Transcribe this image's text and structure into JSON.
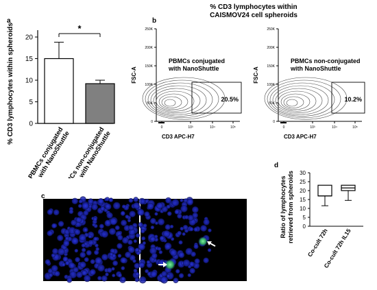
{
  "panels": {
    "a": {
      "letter": "a",
      "ylabel": "% CD3 lymphocytes within spheroids",
      "yticks": [
        "0",
        "5",
        "10",
        "15",
        "20"
      ],
      "significance": "*",
      "categories": [
        "PBMCs conjugated with NanoShuttle",
        "PBMCs non-conjugated with NanoShuttle"
      ],
      "colors": {
        "bar1": "#ffffff",
        "bar2": "#808080"
      }
    },
    "b": {
      "letter": "b",
      "title_line1": "% CD3 lymphocytes within",
      "title_line2": "CAISMOV24 cell spheroids",
      "yticks": [
        "250K",
        "200K",
        "150K",
        "100K",
        "50K",
        "0"
      ],
      "xticks": [
        "0",
        "10³",
        "10⁴",
        "10⁵"
      ],
      "plots": [
        {
          "label_line1": "PBMCs conjugated",
          "label_line2": "with NanoShuttle",
          "ylabel": "FSC-A",
          "xlabel": "CD3 APC-H7",
          "gate": "20.5%"
        },
        {
          "label_line1": "PBMCs non-conjugated",
          "label_line2": "with NanoShuttle",
          "ylabel": "FSC-A",
          "xlabel": "CD3 APC-H7",
          "gate": "10.2%"
        }
      ]
    },
    "c": {
      "letter": "c"
    },
    "d": {
      "letter": "d",
      "ylabel_line1": "Ratio of lymphocytes",
      "ylabel_line2": "retrieved from spheroids",
      "yticks": [
        "0",
        "5",
        "10",
        "15",
        "20",
        "25",
        "30"
      ],
      "categories": [
        "Co-cult 72h",
        "Co-cult 72h IL15"
      ]
    }
  },
  "chart_data": [
    {
      "type": "bar",
      "categories": [
        "PBMCs conjugated with NanoShuttle",
        "PBMCs non-conjugated with NanoShuttle"
      ],
      "values": [
        15,
        9.2
      ],
      "errors": [
        3.8,
        0.8
      ],
      "ylabel": "% CD3 lymphocytes within spheroids",
      "ylim": [
        0,
        20
      ]
    },
    {
      "type": "box",
      "categories": [
        "Co-cult 72h",
        "Co-cult 72h IL15"
      ],
      "boxes": [
        {
          "min": 11.5,
          "q1": 17,
          "median": 17,
          "q3": 23,
          "max": 23
        },
        {
          "min": 14.5,
          "q1": 20,
          "median": 21.5,
          "q3": 23,
          "max": 23
        }
      ],
      "ylabel": "Ratio of lymphocytes retrieved from spheroids",
      "ylim": [
        0,
        30
      ]
    }
  ]
}
